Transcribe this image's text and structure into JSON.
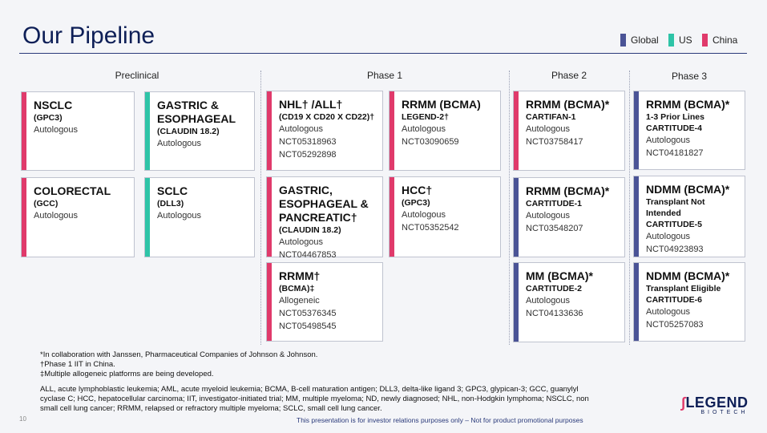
{
  "title": "Our Pipeline",
  "colors": {
    "global": "#4a5396",
    "us": "#2ec4a7",
    "china": "#e03a6b"
  },
  "legend": [
    {
      "label": "Global",
      "color": "#4a5396"
    },
    {
      "label": "US",
      "color": "#2ec4a7"
    },
    {
      "label": "China",
      "color": "#e03a6b"
    }
  ],
  "columns": [
    "Preclinical",
    "Phase 1",
    "Phase 2",
    "Phase 3"
  ],
  "cards": {
    "c1": {
      "region": "china",
      "lines": [
        [
          "NSCLC",
          "l1"
        ],
        [
          "(GPC3)",
          "l2"
        ],
        [
          "Autologous",
          "l3"
        ]
      ]
    },
    "c2": {
      "region": "us",
      "lines": [
        [
          "GASTRIC &",
          "l1"
        ],
        [
          "ESOPHAGEAL",
          "l1"
        ],
        [
          "(CLAUDIN 18.2)",
          "l2"
        ],
        [
          "Autologous",
          "l3"
        ]
      ]
    },
    "c3": {
      "region": "china",
      "lines": [
        [
          "COLORECTAL",
          "l1"
        ],
        [
          "(GCC)",
          "l2"
        ],
        [
          "Autologous",
          "l3"
        ]
      ]
    },
    "c4": {
      "region": "us",
      "lines": [
        [
          "SCLC",
          "l1"
        ],
        [
          "(DLL3)",
          "l2"
        ],
        [
          "Autologous",
          "l3"
        ]
      ]
    },
    "c5": {
      "region": "china",
      "lines": [
        [
          "NHL† /ALL†",
          "l1"
        ],
        [
          "(CD19 X CD20 X CD22)†",
          "l2"
        ],
        [
          "Autologous",
          "l3"
        ],
        [
          "NCT05318963",
          "l3"
        ],
        [
          "NCT05292898",
          "l3"
        ]
      ]
    },
    "c6": {
      "region": "china",
      "lines": [
        [
          "RRMM (BCMA)",
          "l1"
        ],
        [
          "LEGEND-2†",
          "l2"
        ],
        [
          "Autologous",
          "l3"
        ],
        [
          "NCT03090659",
          "l3"
        ]
      ]
    },
    "c7": {
      "region": "china",
      "lines": [
        [
          "GASTRIC,",
          "l1"
        ],
        [
          "ESOPHAGEAL &",
          "l1"
        ],
        [
          "PANCREATIC†",
          "l1"
        ],
        [
          "(CLAUDIN 18.2)",
          "l2"
        ],
        [
          "Autologous",
          "l3"
        ],
        [
          "NCT04467853",
          "l3"
        ]
      ]
    },
    "c8": {
      "region": "china",
      "lines": [
        [
          "HCC†",
          "l1"
        ],
        [
          "(GPC3)",
          "l2"
        ],
        [
          "Autologous",
          "l3"
        ],
        [
          "NCT05352542",
          "l3"
        ]
      ]
    },
    "c9": {
      "region": "china",
      "lines": [
        [
          "RRMM†",
          "l1"
        ],
        [
          "(BCMA)‡",
          "l2"
        ],
        [
          "Allogeneic",
          "l3"
        ],
        [
          "NCT05376345",
          "l3"
        ],
        [
          "NCT05498545",
          "l3"
        ]
      ]
    },
    "c10": {
      "region": "china",
      "lines": [
        [
          "RRMM (BCMA)*",
          "l1"
        ],
        [
          "CARTIFAN-1",
          "l2"
        ],
        [
          "Autologous",
          "l3"
        ],
        [
          "NCT03758417",
          "l3"
        ]
      ]
    },
    "c11": {
      "region": "global",
      "lines": [
        [
          "RRMM (BCMA)*",
          "l1"
        ],
        [
          "CARTITUDE-1",
          "l2"
        ],
        [
          "Autologous",
          "l3"
        ],
        [
          "NCT03548207",
          "l3"
        ]
      ]
    },
    "c12": {
      "region": "global",
      "lines": [
        [
          "MM (BCMA)*",
          "l1"
        ],
        [
          "CARTITUDE-2",
          "l2"
        ],
        [
          "Autologous",
          "l3"
        ],
        [
          "NCT04133636",
          "l3"
        ]
      ]
    },
    "c13": {
      "region": "global",
      "lines": [
        [
          "RRMM (BCMA)*",
          "l1"
        ],
        [
          "1-3 Prior Lines",
          "l2"
        ],
        [
          "CARTITUDE-4",
          "l2"
        ],
        [
          "Autologous",
          "l3"
        ],
        [
          "NCT04181827",
          "l3"
        ]
      ]
    },
    "c14": {
      "region": "global",
      "lines": [
        [
          "NDMM (BCMA)*",
          "l1"
        ],
        [
          "Transplant Not",
          "l2"
        ],
        [
          "Intended",
          "l2"
        ],
        [
          "CARTITUDE-5",
          "l2"
        ],
        [
          "Autologous",
          "l3"
        ],
        [
          "NCT04923893",
          "l3"
        ]
      ]
    },
    "c15": {
      "region": "global",
      "lines": [
        [
          "NDMM (BCMA)*",
          "l1"
        ],
        [
          "Transplant Eligible",
          "l2"
        ],
        [
          "CARTITUDE-6",
          "l2"
        ],
        [
          "Autologous",
          "l3"
        ],
        [
          "NCT05257083",
          "l3"
        ]
      ]
    }
  },
  "footnotes": [
    "*In collaboration with Janssen, Pharmaceutical Companies of Johnson & Johnson.",
    "†Phase 1 IIT in China.",
    "‡Multiple allogeneic platforms are being developed."
  ],
  "abbreviations": "ALL, acute lymphoblastic leukemia; AML, acute myeloid leukemia; BCMA, B-cell maturation antigen; DLL3, delta-like ligand 3; GPC3, glypican-3; GCC, guanylyl cyclase C; HCC, hepatocellular carcinoma; IIT, investigator-initiated trial; MM, multiple myeloma; ND, newly diagnosed; NHL, non-Hodgkin lymphoma; NSCLC, non small cell lung cancer; RRMM, relapsed or refractory multiple myeloma; SCLC, small cell lung cancer.",
  "page_number": "10",
  "disclaimer": "This presentation is for investor relations purposes only – Not for product promotional purposes",
  "logo": {
    "name": "LEGEND",
    "sub": "BIOTECH"
  }
}
